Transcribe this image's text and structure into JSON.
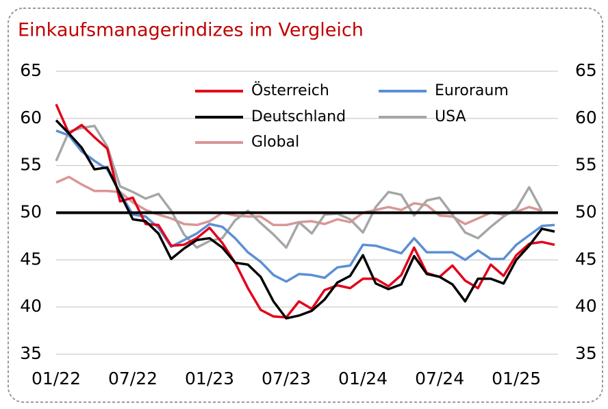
{
  "chart_data": {
    "type": "line",
    "title": "Einkaufsmanagerindizes im Vergleich",
    "categories": [
      "01/22",
      null,
      null,
      null,
      null,
      null,
      "07/22",
      null,
      null,
      null,
      null,
      null,
      "01/23",
      null,
      null,
      null,
      null,
      null,
      "07/23",
      null,
      null,
      null,
      null,
      null,
      "01/24",
      null,
      null,
      null,
      null,
      null,
      "07/24",
      null,
      null,
      null,
      null,
      null,
      "01/25",
      null,
      null,
      null
    ],
    "series": [
      {
        "name": "Österreich",
        "color": "#e2001a",
        "values": [
          61.5,
          58.4,
          59.3,
          58.0,
          56.8,
          51.2,
          51.6,
          48.8,
          48.7,
          46.5,
          46.6,
          47.3,
          48.4,
          46.8,
          44.7,
          42.0,
          39.7,
          39.0,
          38.9,
          40.6,
          39.8,
          41.8,
          42.3,
          42.0,
          43.0,
          43.0,
          42.2,
          43.4,
          46.3,
          43.6,
          43.2,
          44.4,
          42.8,
          42.0,
          44.5,
          43.3,
          45.5,
          46.7,
          46.9,
          46.6
        ]
      },
      {
        "name": "Euroraum",
        "color": "#5b8fd4",
        "values": [
          58.7,
          58.2,
          56.5,
          55.5,
          54.6,
          52.1,
          49.8,
          49.6,
          48.4,
          46.4,
          47.1,
          47.8,
          48.8,
          48.5,
          47.3,
          45.8,
          44.8,
          43.4,
          42.7,
          43.5,
          43.4,
          43.1,
          44.2,
          44.4,
          46.6,
          46.5,
          46.1,
          45.7,
          47.3,
          45.8,
          45.8,
          45.8,
          45.0,
          46.0,
          45.1,
          45.1,
          46.6,
          47.6,
          48.6,
          48.7
        ]
      },
      {
        "name": "Deutschland",
        "color": "#000000",
        "values": [
          59.8,
          58.4,
          56.9,
          54.6,
          54.8,
          52.0,
          49.3,
          49.1,
          47.8,
          45.1,
          46.2,
          47.1,
          47.3,
          46.3,
          44.7,
          44.5,
          43.2,
          40.6,
          38.8,
          39.1,
          39.6,
          40.8,
          42.6,
          43.3,
          45.5,
          42.5,
          41.9,
          42.4,
          45.4,
          43.5,
          43.2,
          42.4,
          40.6,
          43.0,
          43.0,
          42.5,
          45.0,
          46.5,
          48.3,
          48.0
        ]
      },
      {
        "name": "USA",
        "color": "#a6a6a6",
        "values": [
          55.5,
          58.6,
          59.0,
          59.2,
          57.0,
          52.8,
          52.2,
          51.5,
          52.0,
          50.2,
          47.7,
          46.3,
          47.0,
          47.3,
          49.2,
          50.2,
          48.9,
          47.7,
          46.3,
          49.0,
          47.8,
          49.8,
          49.9,
          49.3,
          47.9,
          50.6,
          52.2,
          51.9,
          49.7,
          51.3,
          51.6,
          49.8,
          47.9,
          47.3,
          48.5,
          49.6,
          50.4,
          52.7,
          50.2,
          null
        ]
      },
      {
        "name": "Global",
        "color": "#d99694",
        "values": [
          53.2,
          53.8,
          53.0,
          52.3,
          52.3,
          52.2,
          51.1,
          50.3,
          49.8,
          49.4,
          48.8,
          48.7,
          49.1,
          50.0,
          49.7,
          49.6,
          49.6,
          48.7,
          48.7,
          49.0,
          49.1,
          48.8,
          49.3,
          49.0,
          50.0,
          50.3,
          50.6,
          50.3,
          51.0,
          50.8,
          49.7,
          49.6,
          48.8,
          49.4,
          50.0,
          49.8,
          50.1,
          50.6,
          50.2,
          null
        ]
      }
    ],
    "ylim": [
      35,
      65
    ],
    "yticks": [
      35,
      40,
      45,
      50,
      55,
      60,
      65
    ],
    "y2lim": [
      35,
      65
    ],
    "y2ticks": [
      35,
      40,
      45,
      50,
      55,
      60,
      65
    ],
    "reference_line": 50,
    "grid": true
  }
}
